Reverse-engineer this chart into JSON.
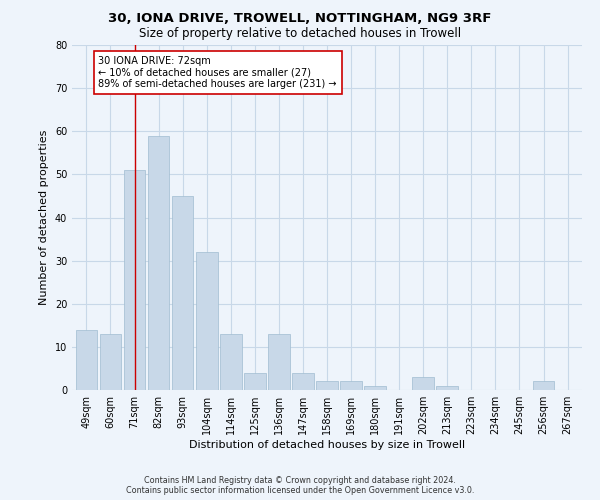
{
  "title1": "30, IONA DRIVE, TROWELL, NOTTINGHAM, NG9 3RF",
  "title2": "Size of property relative to detached houses in Trowell",
  "xlabel": "Distribution of detached houses by size in Trowell",
  "ylabel": "Number of detached properties",
  "categories": [
    "49sqm",
    "60sqm",
    "71sqm",
    "82sqm",
    "93sqm",
    "104sqm",
    "114sqm",
    "125sqm",
    "136sqm",
    "147sqm",
    "158sqm",
    "169sqm",
    "180sqm",
    "191sqm",
    "202sqm",
    "213sqm",
    "223sqm",
    "234sqm",
    "245sqm",
    "256sqm",
    "267sqm"
  ],
  "values": [
    14,
    13,
    51,
    59,
    45,
    32,
    13,
    4,
    13,
    4,
    2,
    2,
    1,
    0,
    3,
    1,
    0,
    0,
    0,
    2,
    0
  ],
  "bar_color": "#c8d8e8",
  "bar_edge_color": "#a0bcd0",
  "grid_color": "#c8d8e8",
  "background_color": "#eef4fb",
  "vline_x_index": 2,
  "vline_color": "#cc0000",
  "annotation_text": "30 IONA DRIVE: 72sqm\n← 10% of detached houses are smaller (27)\n89% of semi-detached houses are larger (231) →",
  "annotation_box_color": "#ffffff",
  "annotation_box_edge_color": "#cc0000",
  "ylim": [
    0,
    80
  ],
  "yticks": [
    0,
    10,
    20,
    30,
    40,
    50,
    60,
    70,
    80
  ],
  "footer1": "Contains HM Land Registry data © Crown copyright and database right 2024.",
  "footer2": "Contains public sector information licensed under the Open Government Licence v3.0.",
  "title1_fontsize": 9.5,
  "title2_fontsize": 8.5,
  "tick_fontsize": 7,
  "label_fontsize": 8,
  "annotation_fontsize": 7,
  "footer_fontsize": 5.8
}
